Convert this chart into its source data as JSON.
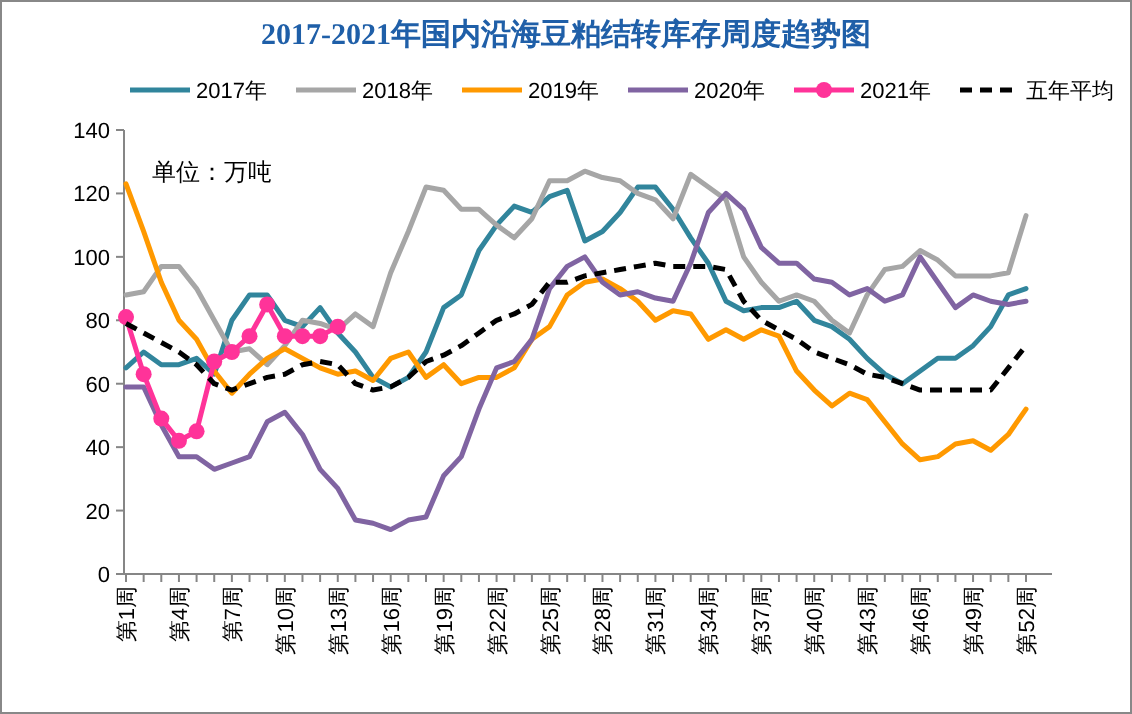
{
  "chart_data": {
    "type": "line",
    "title": "2017-2021年国内沿海豆粕结转库存周度趋势图",
    "annotations": [
      "单位：万吨"
    ],
    "categories": [
      "第1周",
      null,
      null,
      "第4周",
      null,
      null,
      "第7周",
      null,
      null,
      "第10周",
      null,
      null,
      "第13周",
      null,
      null,
      "第16周",
      null,
      null,
      "第19周",
      null,
      null,
      "第22周",
      null,
      null,
      "第25周",
      null,
      null,
      "第28周",
      null,
      null,
      "第31周",
      null,
      null,
      "第34周",
      null,
      null,
      "第37周",
      null,
      null,
      "第40周",
      null,
      null,
      "第43周",
      null,
      null,
      "第46周",
      null,
      null,
      "第49周",
      null,
      null,
      "第52周"
    ],
    "ylim": [
      0,
      140
    ],
    "yticks": [
      0,
      20,
      40,
      60,
      80,
      100,
      120,
      140
    ],
    "grid": false,
    "legend": "top",
    "series": [
      {
        "name": "2017年",
        "color": "#31859c",
        "values": [
          65,
          70,
          66,
          66,
          68,
          63,
          80,
          88,
          88,
          80,
          78,
          84,
          76,
          70,
          62,
          59,
          62,
          70,
          84,
          88,
          102,
          110,
          116,
          114,
          119,
          121,
          105,
          108,
          114,
          122,
          122,
          115,
          106,
          98,
          86,
          83,
          84,
          84,
          86,
          80,
          78,
          74,
          68,
          63,
          60,
          64,
          68,
          68,
          72,
          78,
          88,
          90
        ]
      },
      {
        "name": "2018年",
        "color": "#a6a6a6",
        "values": [
          88,
          89,
          97,
          97,
          90,
          80,
          70,
          71,
          66,
          72,
          80,
          79,
          77,
          82,
          78,
          95,
          108,
          122,
          121,
          115,
          115,
          110,
          106,
          112,
          124,
          124,
          127,
          125,
          124,
          120,
          118,
          112,
          126,
          122,
          118,
          100,
          92,
          86,
          88,
          86,
          80,
          76,
          88,
          96,
          97,
          102,
          99,
          94,
          94,
          94,
          95,
          113
        ]
      },
      {
        "name": "2019年",
        "color": "#ff9900",
        "values": [
          123,
          108,
          92,
          80,
          74,
          64,
          57,
          63,
          68,
          71,
          68,
          65,
          63,
          64,
          61,
          68,
          70,
          62,
          66,
          60,
          62,
          62,
          65,
          74,
          78,
          88,
          92,
          93,
          90,
          86,
          80,
          83,
          82,
          74,
          77,
          74,
          77,
          75,
          64,
          58,
          53,
          57,
          55,
          48,
          41,
          36,
          37,
          41,
          42,
          39,
          44,
          52
        ]
      },
      {
        "name": "2020年",
        "color": "#8064a2",
        "values": [
          59,
          59,
          47,
          37,
          37,
          33,
          35,
          37,
          48,
          51,
          44,
          33,
          27,
          17,
          16,
          14,
          17,
          18,
          31,
          37,
          52,
          65,
          67,
          74,
          90,
          97,
          100,
          92,
          88,
          89,
          87,
          86,
          98,
          114,
          120,
          115,
          103,
          98,
          98,
          93,
          92,
          88,
          90,
          86,
          88,
          100,
          92,
          84,
          88,
          86,
          85,
          86
        ]
      },
      {
        "name": "2021年",
        "color": "#ff3399",
        "marker": "circle",
        "values": [
          81,
          63,
          49,
          42,
          45,
          67,
          70,
          75,
          85,
          75,
          75,
          75,
          78,
          null,
          null,
          null,
          null,
          null,
          null,
          null,
          null,
          null,
          null,
          null,
          null,
          null,
          null,
          null,
          null,
          null,
          null,
          null,
          null,
          null,
          null,
          null,
          null,
          null,
          null,
          null,
          null,
          null,
          null,
          null,
          null,
          null,
          null,
          null,
          null,
          null,
          null,
          null
        ]
      },
      {
        "name": "五年平均",
        "color": "#000000",
        "line_style": "dashed",
        "values": [
          79,
          76,
          73,
          70,
          66,
          60,
          58,
          60,
          62,
          63,
          66,
          67,
          66,
          60,
          58,
          59,
          62,
          67,
          69,
          72,
          76,
          80,
          82,
          85,
          92,
          92,
          94,
          95,
          96,
          97,
          98,
          97,
          97,
          97,
          96,
          86,
          80,
          77,
          74,
          70,
          68,
          66,
          63,
          62,
          60,
          58,
          58,
          58,
          58,
          58,
          65,
          72
        ]
      }
    ]
  }
}
